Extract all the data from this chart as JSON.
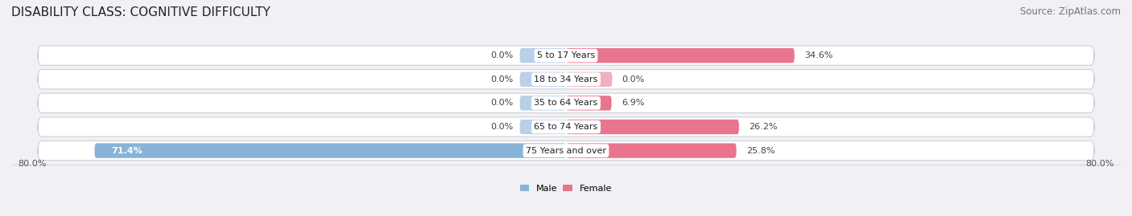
{
  "title": "DISABILITY CLASS: COGNITIVE DIFFICULTY",
  "source": "Source: ZipAtlas.com",
  "categories": [
    "5 to 17 Years",
    "18 to 34 Years",
    "35 to 64 Years",
    "65 to 74 Years",
    "75 Years and over"
  ],
  "male_values": [
    0.0,
    0.0,
    0.0,
    0.0,
    71.4
  ],
  "female_values": [
    34.6,
    0.0,
    6.9,
    26.2,
    25.8
  ],
  "male_color": "#88b4d8",
  "female_color": "#e8748e",
  "male_stub_color": "#b8d0e8",
  "female_stub_color": "#f0b0bf",
  "bar_bg_color": "#e8e8ee",
  "row_bg_color": "#ebebf0",
  "axis_min": -80.0,
  "axis_max": 80.0,
  "axis_left_label": "80.0%",
  "axis_right_label": "80.0%",
  "title_fontsize": 11,
  "source_fontsize": 8.5,
  "label_fontsize": 8,
  "category_fontsize": 8,
  "bar_height": 0.62,
  "stub_size": 7.0,
  "background_color": "#f0f0f5"
}
